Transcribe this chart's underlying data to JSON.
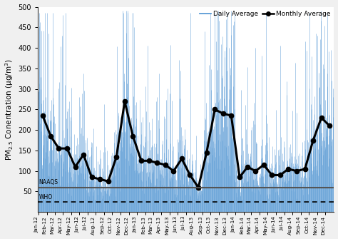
{
  "title": "",
  "ylabel": "PM$_{2.5}$ Conentration (μg/m$^3$)",
  "ylim": [
    0,
    500
  ],
  "yticks": [
    50,
    100,
    150,
    200,
    250,
    300,
    350,
    400,
    450,
    500
  ],
  "naaqs_level": 60,
  "who_level": 25,
  "naaqs_label": "NAAQS",
  "who_label": "WHO",
  "daily_color": "#5B9BD5",
  "monthly_color": "#000000",
  "background_color": "#f0f0f0",
  "plot_bg_color": "#ffffff",
  "legend_daily": "Daily Average",
  "legend_monthly": "Monthly Average",
  "months": [
    "Jan-12",
    "Feb-12",
    "Mar-12",
    "Apr-12",
    "May-12",
    "Jun-12",
    "Jul-12",
    "Aug-12",
    "Sep-12",
    "Oct-12",
    "Nov-12",
    "Dec-12",
    "Jan-13",
    "Feb-13",
    "Mar-13",
    "Apr-13",
    "May-13",
    "Jun-13",
    "Jul-13",
    "Aug-13",
    "Sep-13",
    "Oct-13",
    "Nov-13",
    "Dec-13",
    "Jan-14",
    "Feb-14",
    "Mar-14",
    "Apr-14",
    "May-14",
    "Jun-14",
    "Jul-14",
    "Aug-14",
    "Sep-14",
    "Oct-14",
    "Nov-14",
    "Dec-14"
  ],
  "monthly_avg": [
    235,
    185,
    155,
    155,
    110,
    140,
    85,
    80,
    75,
    135,
    270,
    185,
    125,
    125,
    120,
    115,
    100,
    130,
    90,
    60,
    145,
    250,
    240,
    235,
    85,
    110,
    100,
    115,
    90,
    90,
    105,
    100,
    105,
    175,
    230,
    210
  ],
  "seed": 42
}
